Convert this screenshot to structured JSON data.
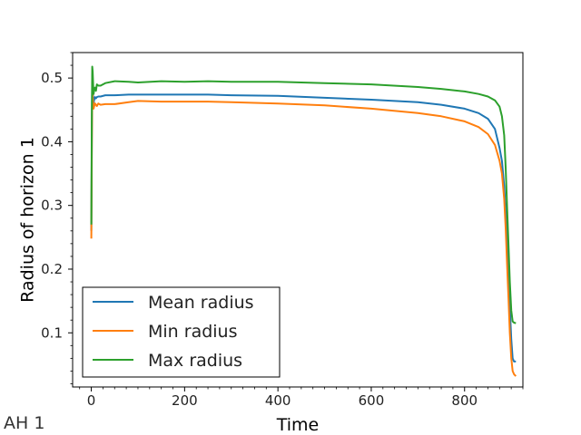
{
  "figure_label": "AH 1",
  "chart_data": {
    "type": "line",
    "title": "",
    "xlabel": "Time",
    "ylabel": "Radius of horizon 1",
    "xlim": [
      -40,
      925
    ],
    "ylim": [
      0.015,
      0.54
    ],
    "xticks": [
      0,
      200,
      400,
      600,
      800
    ],
    "xtick_labels": [
      "0",
      "200",
      "400",
      "600",
      "800"
    ],
    "yticks": [
      0.1,
      0.2,
      0.3,
      0.4,
      0.5
    ],
    "ytick_labels": [
      "0.1",
      "0.2",
      "0.3",
      "0.4",
      "0.5"
    ],
    "grid": false,
    "legend_position": "lower-left",
    "series": [
      {
        "name": "Mean radius",
        "color": "#1f77b4",
        "x": [
          0,
          1,
          2,
          3,
          4,
          5,
          6,
          8,
          10,
          12,
          15,
          20,
          30,
          50,
          80,
          100,
          150,
          200,
          250,
          300,
          400,
          500,
          600,
          700,
          750,
          800,
          830,
          850,
          865,
          875,
          880,
          885,
          888,
          891,
          894,
          897,
          900,
          903,
          906,
          910
        ],
        "y": [
          0.26,
          0.4,
          0.505,
          0.48,
          0.47,
          0.46,
          0.465,
          0.47,
          0.468,
          0.47,
          0.471,
          0.471,
          0.473,
          0.473,
          0.474,
          0.474,
          0.474,
          0.474,
          0.474,
          0.473,
          0.472,
          0.469,
          0.466,
          0.462,
          0.458,
          0.452,
          0.445,
          0.436,
          0.42,
          0.39,
          0.37,
          0.33,
          0.29,
          0.24,
          0.19,
          0.14,
          0.09,
          0.06,
          0.055,
          0.055
        ]
      },
      {
        "name": "Min radius",
        "color": "#ff7f0e",
        "x": [
          0,
          1,
          2,
          3,
          4,
          5,
          6,
          8,
          10,
          12,
          15,
          20,
          30,
          50,
          80,
          100,
          150,
          200,
          250,
          300,
          400,
          500,
          600,
          700,
          750,
          800,
          830,
          850,
          865,
          875,
          880,
          885,
          888,
          891,
          894,
          897,
          900,
          903,
          906,
          910
        ],
        "y": [
          0.248,
          0.38,
          0.49,
          0.47,
          0.46,
          0.452,
          0.455,
          0.46,
          0.458,
          0.456,
          0.46,
          0.458,
          0.459,
          0.459,
          0.462,
          0.464,
          0.463,
          0.463,
          0.463,
          0.462,
          0.46,
          0.457,
          0.452,
          0.445,
          0.44,
          0.432,
          0.423,
          0.412,
          0.395,
          0.37,
          0.35,
          0.31,
          0.265,
          0.21,
          0.155,
          0.1,
          0.06,
          0.04,
          0.035,
          0.032
        ]
      },
      {
        "name": "Max radius",
        "color": "#2ca02c",
        "x": [
          0,
          1,
          2,
          3,
          4,
          5,
          6,
          8,
          10,
          12,
          15,
          20,
          30,
          50,
          80,
          100,
          150,
          200,
          250,
          300,
          400,
          500,
          600,
          700,
          750,
          800,
          830,
          850,
          865,
          875,
          880,
          885,
          888,
          891,
          894,
          897,
          900,
          903,
          906,
          910
        ],
        "y": [
          0.27,
          0.43,
          0.518,
          0.51,
          0.49,
          0.475,
          0.48,
          0.485,
          0.48,
          0.49,
          0.488,
          0.488,
          0.492,
          0.495,
          0.494,
          0.493,
          0.495,
          0.494,
          0.495,
          0.494,
          0.494,
          0.492,
          0.49,
          0.486,
          0.483,
          0.479,
          0.475,
          0.471,
          0.465,
          0.455,
          0.44,
          0.41,
          0.36,
          0.3,
          0.24,
          0.18,
          0.135,
          0.118,
          0.116,
          0.115
        ]
      }
    ]
  }
}
